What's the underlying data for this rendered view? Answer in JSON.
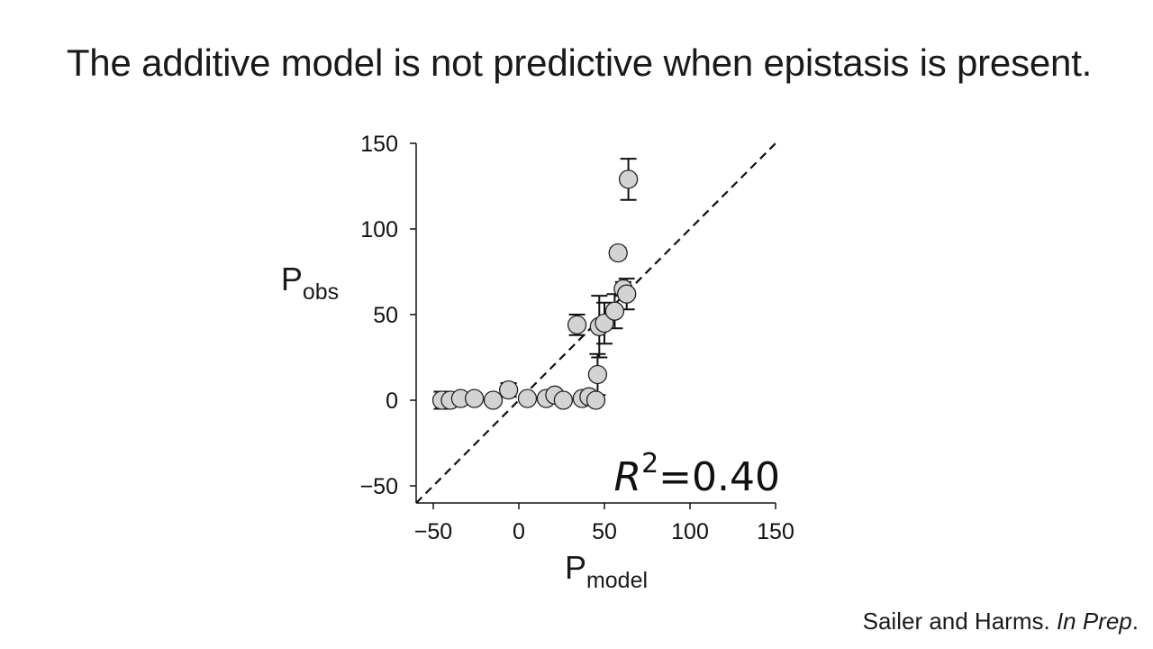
{
  "slide": {
    "title": "The additive model is not predictive when epistasis is present."
  },
  "citation": {
    "authors": "Sailer and Harms.",
    "venue": "In Prep",
    "end": "."
  },
  "chart_data": {
    "type": "scatter",
    "title": "",
    "xlabel_main": "P",
    "xlabel_sub": "model",
    "ylabel_main": "P",
    "ylabel_sub": "obs",
    "xlim": [
      -60,
      150
    ],
    "ylim": [
      -60,
      150
    ],
    "xticks": [
      -50,
      0,
      50,
      100,
      150
    ],
    "yticks": [
      -50,
      0,
      50,
      100,
      150
    ],
    "xtick_labels": [
      "−50",
      "0",
      "50",
      "100",
      "150"
    ],
    "ytick_labels": [
      "−50",
      "0",
      "50",
      "100",
      "150"
    ],
    "grid": false,
    "reference_line": {
      "style": "dashed",
      "from": [
        -60,
        -60
      ],
      "to": [
        150,
        150
      ]
    },
    "annotation": {
      "base": "R",
      "exp": "2",
      "rest": "=0.40"
    },
    "marker_fill": "#d3d3d3",
    "marker_edge": "#222222",
    "points": [
      {
        "x": -45,
        "y": 0,
        "err": 5
      },
      {
        "x": -40,
        "y": 0,
        "err": 0
      },
      {
        "x": -34,
        "y": 1,
        "err": 0
      },
      {
        "x": -26,
        "y": 1,
        "err": 0
      },
      {
        "x": -15,
        "y": 0,
        "err": 0
      },
      {
        "x": -6,
        "y": 6,
        "err": 4
      },
      {
        "x": 5,
        "y": 1,
        "err": 0
      },
      {
        "x": 16,
        "y": 1,
        "err": 0
      },
      {
        "x": 21,
        "y": 3,
        "err": 0
      },
      {
        "x": 26,
        "y": 0,
        "err": 0
      },
      {
        "x": 37,
        "y": 1,
        "err": 0
      },
      {
        "x": 41,
        "y": 2,
        "err": 0
      },
      {
        "x": 45,
        "y": 0,
        "err": 2
      },
      {
        "x": 34,
        "y": 44,
        "err": 6
      },
      {
        "x": 46,
        "y": 15,
        "err": 12
      },
      {
        "x": 47,
        "y": 43,
        "err": 18
      },
      {
        "x": 50,
        "y": 45,
        "err": 12
      },
      {
        "x": 56,
        "y": 52,
        "err": 10
      },
      {
        "x": 58,
        "y": 86,
        "err": 3
      },
      {
        "x": 61,
        "y": 65,
        "err": 4
      },
      {
        "x": 63,
        "y": 62,
        "err": 9
      },
      {
        "x": 64,
        "y": 129,
        "err": 12
      }
    ]
  }
}
